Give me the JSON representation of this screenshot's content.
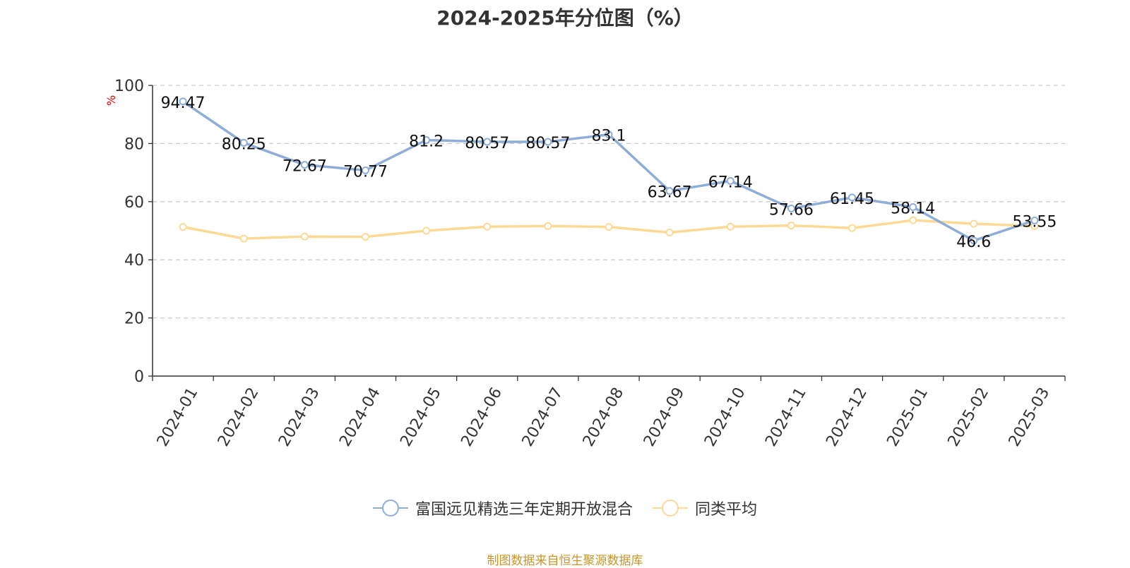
{
  "chart_data": {
    "type": "line",
    "title": "2024-2025年分位图（%）",
    "ylabel": "%",
    "xlabel": "",
    "ylim": [
      0,
      100
    ],
    "yticks": [
      0,
      20,
      40,
      60,
      80,
      100
    ],
    "grid": true,
    "legend_position": "bottom",
    "categories": [
      "2024-01",
      "2024-02",
      "2024-03",
      "2024-04",
      "2024-05",
      "2024-06",
      "2024-07",
      "2024-08",
      "2024-09",
      "2024-10",
      "2024-11",
      "2024-12",
      "2025-01",
      "2025-02",
      "2025-03"
    ],
    "series": [
      {
        "name": "富国远见精选三年定期开放混合",
        "color": "#8eadd8",
        "values": [
          94.47,
          80.25,
          72.67,
          70.77,
          81.2,
          80.57,
          80.57,
          83.1,
          63.67,
          67.14,
          57.66,
          61.45,
          58.14,
          46.6,
          53.55
        ],
        "labels": [
          "94.47",
          "80.25",
          "72.67",
          "70.77",
          "81.2",
          "80.57",
          "80.57",
          "83.1",
          "63.67",
          "67.14",
          "57.66",
          "61.45",
          "58.14",
          "46.6",
          "53.55"
        ]
      },
      {
        "name": "同类平均",
        "color": "#fdd996",
        "values": [
          51.3,
          47.3,
          48.0,
          47.9,
          50.0,
          51.4,
          51.6,
          51.3,
          49.4,
          51.4,
          51.8,
          50.9,
          53.6,
          52.4,
          51.6
        ]
      }
    ]
  },
  "source": "制图数据来自恒生聚源数据库"
}
